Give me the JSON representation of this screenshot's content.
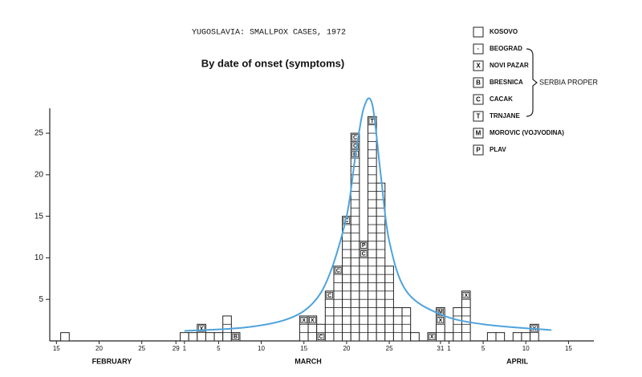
{
  "chart_data": {
    "type": "stacked-units",
    "title": "YUGOSLAVIA:  SMALLPOX CASES, 1972",
    "subtitle": "By date of onset (symptoms)",
    "x": [
      "1972-02-16",
      "1972-03-01",
      "1972-03-02",
      "1972-03-03",
      "1972-03-04",
      "1972-03-05",
      "1972-03-06",
      "1972-03-07",
      "1972-03-15",
      "1972-03-16",
      "1972-03-17",
      "1972-03-18",
      "1972-03-19",
      "1972-03-20",
      "1972-03-21",
      "1972-03-22",
      "1972-03-23",
      "1972-03-24",
      "1972-03-25",
      "1972-03-26",
      "1972-03-27",
      "1972-03-28",
      "1972-03-30",
      "1972-03-31",
      "1972-04-01",
      "1972-04-02",
      "1972-04-03",
      "1972-04-06",
      "1972-04-07",
      "1972-04-09",
      "1972-04-10",
      "1972-04-11"
    ],
    "values": [
      1,
      1,
      1,
      2,
      1,
      1,
      3,
      1,
      3,
      3,
      2,
      6,
      9,
      15,
      25,
      12,
      27,
      19,
      9,
      4,
      4,
      1,
      1,
      4,
      1,
      4,
      6,
      1,
      1,
      1,
      1,
      2
    ],
    "marked_cases": [
      {
        "x": "1972-03-03",
        "n": 2,
        "symbol": "X"
      },
      {
        "x": "1972-03-07",
        "n": 1,
        "symbol": "B"
      },
      {
        "x": "1972-03-15",
        "n": 3,
        "symbol": "X"
      },
      {
        "x": "1972-03-16",
        "n": 3,
        "symbol": "X"
      },
      {
        "x": "1972-03-17",
        "n": 1,
        "symbol": "C"
      },
      {
        "x": "1972-03-18",
        "n": 6,
        "symbol": "C"
      },
      {
        "x": "1972-03-19",
        "n": 9,
        "symbol": "C"
      },
      {
        "x": "1972-03-20",
        "n": 15,
        "symbol": "C"
      },
      {
        "x": "1972-03-21",
        "n": 25,
        "symbol": "C"
      },
      {
        "x": "1972-03-21",
        "n": 24,
        "symbol": "C"
      },
      {
        "x": "1972-03-21",
        "n": 23,
        "symbol": "B"
      },
      {
        "x": "1972-03-22",
        "n": 12,
        "symbol": "P"
      },
      {
        "x": "1972-03-22",
        "n": 11,
        "symbol": "C"
      },
      {
        "x": "1972-03-23",
        "n": 27,
        "symbol": "T"
      },
      {
        "x": "1972-03-30",
        "n": 1,
        "symbol": "X"
      },
      {
        "x": "1972-03-31",
        "n": 4,
        "symbol": "M"
      },
      {
        "x": "1972-03-31",
        "n": 3,
        "symbol": "X"
      },
      {
        "x": "1972-04-03",
        "n": 6,
        "symbol": "X"
      },
      {
        "x": "1972-04-11",
        "n": 2,
        "symbol": "X"
      }
    ],
    "curve": {
      "color": "#4ea3dc",
      "x": [
        "1972-03-01",
        "1972-03-08",
        "1972-03-13",
        "1972-03-16",
        "1972-03-18",
        "1972-03-20",
        "1972-03-21",
        "1972-03-22",
        "1972-03-23",
        "1972-03-24",
        "1972-03-25",
        "1972-03-27",
        "1972-03-31",
        "1972-04-05",
        "1972-04-13"
      ],
      "values": [
        1.2,
        1.6,
        2.6,
        4.5,
        8,
        15,
        22,
        28,
        28.5,
        20,
        12,
        6,
        3.2,
        2,
        1.3
      ]
    },
    "xlim": [
      "1972-02-15",
      "1972-04-18"
    ],
    "xticks": [
      {
        "value": "1972-02-15",
        "label": "15"
      },
      {
        "value": "1972-02-20",
        "label": "20"
      },
      {
        "value": "1972-02-25",
        "label": "25"
      },
      {
        "value": "1972-02-29",
        "label": "29"
      },
      {
        "value": "1972-03-01",
        "label": "1"
      },
      {
        "value": "1972-03-05",
        "label": "5"
      },
      {
        "value": "1972-03-10",
        "label": "10"
      },
      {
        "value": "1972-03-15",
        "label": "15"
      },
      {
        "value": "1972-03-20",
        "label": "20"
      },
      {
        "value": "1972-03-25",
        "label": "25"
      },
      {
        "value": "1972-03-31",
        "label": "31"
      },
      {
        "value": "1972-04-01",
        "label": "1"
      },
      {
        "value": "1972-04-05",
        "label": "5"
      },
      {
        "value": "1972-04-10",
        "label": "10"
      },
      {
        "value": "1972-04-15",
        "label": "15"
      }
    ],
    "months": [
      "FEBRUARY",
      "MARCH",
      "APRIL"
    ],
    "ylim": [
      0,
      28
    ],
    "yticks": [
      5,
      10,
      15,
      20,
      25
    ],
    "legend": [
      {
        "name": "KOSOVO"
      },
      {
        "symbol": "·",
        "name": "BEOGRAD",
        "in_group": true
      },
      {
        "symbol": "X",
        "name": "NOVI PAZAR",
        "in_group": true
      },
      {
        "symbol": "B",
        "name": "BRESNICA",
        "in_group": true
      },
      {
        "symbol": "C",
        "name": "CACAK",
        "in_group": true
      },
      {
        "symbol": "T",
        "name": "TRNJANE",
        "in_group": true
      },
      {
        "symbol": "M",
        "name": "MOROVIC (VOJVODINA)"
      },
      {
        "symbol": "P",
        "name": "PLAV"
      }
    ],
    "group_label": "SERBIA PROPER"
  }
}
